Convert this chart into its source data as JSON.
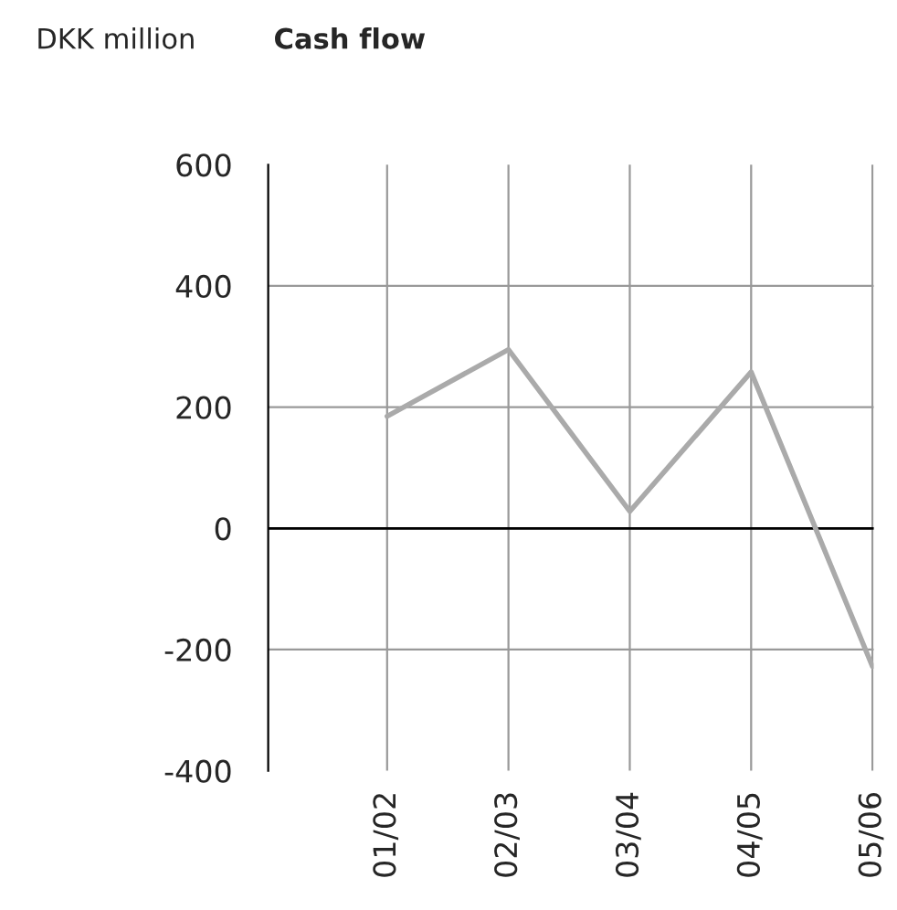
{
  "chart_data": {
    "type": "line",
    "title": "Cash flow",
    "ylabel": "DKK million",
    "categories": [
      "01/02",
      "02/03",
      "03/04",
      "04/05",
      "05/06"
    ],
    "series": [
      {
        "color": "#aaaaaa",
        "values": [
          185,
          295,
          28,
          258,
          -228
        ]
      }
    ],
    "ylim": [
      -400,
      600
    ],
    "yticks": [
      -400,
      -200,
      0,
      200,
      400,
      600
    ],
    "ref_lines": [
      {
        "axis": "y",
        "value": 0,
        "color": "#000000"
      }
    ],
    "grid": true,
    "legend": false,
    "marker": "none",
    "line_style": "solid"
  }
}
